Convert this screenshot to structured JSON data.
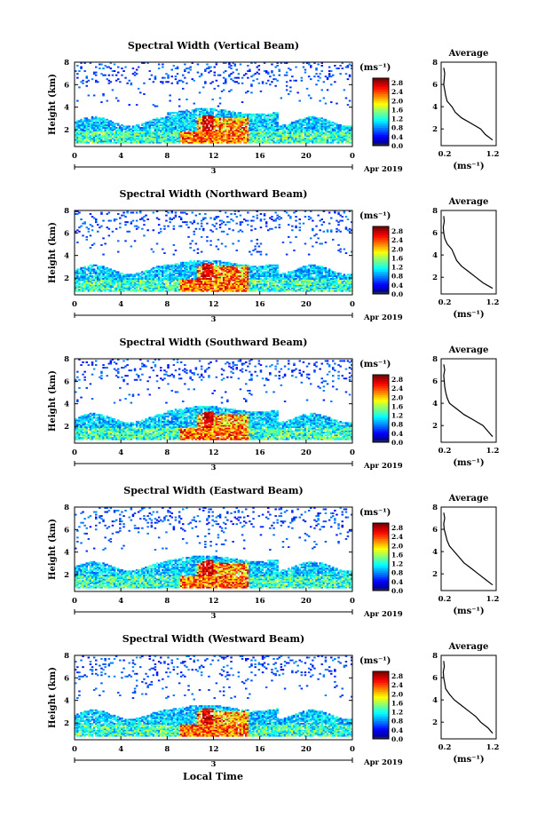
{
  "figure": {
    "bottom_xlabel": "Local Time",
    "month_label": "Apr 2019",
    "day_label": "3"
  },
  "colorbar": {
    "unit_label": "(ms⁻¹)",
    "ticks": [
      "0.0",
      "0.4",
      "0.8",
      "1.2",
      "1.6",
      "2.0",
      "2.4",
      "2.8"
    ],
    "range": [
      0.0,
      3.0
    ],
    "colormap": "jet"
  },
  "average_panel": {
    "title": "Average",
    "xlabel": "(ms⁻¹)",
    "xticks": [
      "0.2",
      "1.2"
    ],
    "yticks": [
      "2",
      "4",
      "6",
      "8"
    ]
  },
  "chart_data": [
    {
      "type": "heatmap",
      "title": "Spectral Width (Vertical Beam)",
      "ylabel": "Height (km)",
      "x_ticks": [
        "0",
        "4",
        "8",
        "12",
        "16",
        "20",
        "0"
      ],
      "y_ticks": [
        "2",
        "4",
        "6",
        "8"
      ],
      "xlim": [
        0,
        24
      ],
      "ylim": [
        0.5,
        8
      ],
      "layer_top_km": 3.6,
      "average_profile": {
        "height_km": [
          1.0,
          1.5,
          2.0,
          2.5,
          3.0,
          3.5,
          4.0,
          4.5,
          5.0,
          5.5,
          6.0,
          6.5,
          7.0,
          7.5
        ],
        "width_ms": [
          1.2,
          1.05,
          0.95,
          0.75,
          0.55,
          0.42,
          0.35,
          0.25,
          0.22,
          0.2,
          0.18,
          0.19,
          0.2,
          0.18
        ]
      }
    },
    {
      "type": "heatmap",
      "title": "Spectral Width (Northward Beam)",
      "ylabel": "Height (km)",
      "x_ticks": [
        "0",
        "4",
        "8",
        "12",
        "16",
        "20",
        "0"
      ],
      "y_ticks": [
        "2",
        "4",
        "6",
        "8"
      ],
      "xlim": [
        0,
        24
      ],
      "ylim": [
        0.5,
        8
      ],
      "layer_top_km": 3.3,
      "average_profile": {
        "height_km": [
          1.0,
          1.5,
          2.0,
          2.5,
          3.0,
          3.5,
          4.0,
          4.5,
          5.0,
          5.5,
          6.0,
          6.5,
          7.0,
          7.5
        ],
        "width_ms": [
          1.2,
          1.0,
          0.85,
          0.7,
          0.55,
          0.45,
          0.4,
          0.35,
          0.25,
          0.2,
          0.18,
          0.17,
          0.19,
          0.18
        ]
      }
    },
    {
      "type": "heatmap",
      "title": "Spectral Width (Southward Beam)",
      "ylabel": "Height (km)",
      "x_ticks": [
        "0",
        "4",
        "8",
        "12",
        "16",
        "20",
        "0"
      ],
      "y_ticks": [
        "2",
        "4",
        "6",
        "8"
      ],
      "xlim": [
        0,
        24
      ],
      "ylim": [
        0.5,
        8
      ],
      "layer_top_km": 3.5,
      "average_profile": {
        "height_km": [
          1.0,
          1.5,
          2.0,
          2.5,
          3.0,
          3.5,
          4.0,
          4.5,
          5.0,
          5.5,
          6.0,
          6.5,
          7.0,
          7.5
        ],
        "width_ms": [
          1.2,
          1.1,
          1.0,
          0.8,
          0.6,
          0.45,
          0.3,
          0.25,
          0.22,
          0.2,
          0.19,
          0.18,
          0.2,
          0.18
        ]
      }
    },
    {
      "type": "heatmap",
      "title": "Spectral Width (Eastward Beam)",
      "ylabel": "Height (km)",
      "x_ticks": [
        "0",
        "4",
        "8",
        "12",
        "16",
        "20",
        "0"
      ],
      "y_ticks": [
        "2",
        "4",
        "6",
        "8"
      ],
      "xlim": [
        0,
        24
      ],
      "ylim": [
        0.5,
        8
      ],
      "layer_top_km": 3.4,
      "average_profile": {
        "height_km": [
          1.0,
          1.5,
          2.0,
          2.5,
          3.0,
          3.5,
          4.0,
          4.5,
          5.0,
          5.5,
          6.0,
          6.5,
          7.0,
          7.5
        ],
        "width_ms": [
          1.2,
          1.05,
          0.9,
          0.75,
          0.6,
          0.5,
          0.4,
          0.3,
          0.25,
          0.22,
          0.19,
          0.18,
          0.2,
          0.18
        ]
      }
    },
    {
      "type": "heatmap",
      "title": "Spectral Width (Westward Beam)",
      "ylabel": "Height (km)",
      "x_ticks": [
        "0",
        "4",
        "8",
        "12",
        "16",
        "20",
        "0"
      ],
      "y_ticks": [
        "2",
        "4",
        "6",
        "8"
      ],
      "xlim": [
        0,
        24
      ],
      "ylim": [
        0.5,
        8
      ],
      "layer_top_km": 3.3,
      "average_profile": {
        "height_km": [
          1.0,
          1.5,
          2.0,
          2.5,
          3.0,
          3.5,
          4.0,
          4.5,
          5.0,
          5.5,
          6.0,
          6.5,
          7.0,
          7.5
        ],
        "width_ms": [
          1.2,
          1.1,
          0.95,
          0.85,
          0.7,
          0.55,
          0.4,
          0.3,
          0.22,
          0.2,
          0.18,
          0.17,
          0.19,
          0.18
        ]
      }
    }
  ]
}
